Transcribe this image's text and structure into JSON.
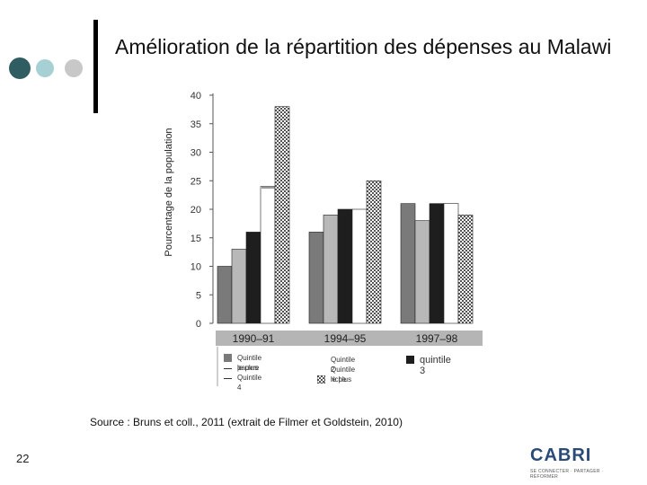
{
  "title": "Amélioration de la répartition des dépenses au Malawi",
  "source": "Source : Bruns et coll., 2011 (extrait de Filmer et Goldstein, 2010)",
  "page_number": "22",
  "logo": {
    "word": "CABRI",
    "tagline": "SE CONNECTER · PARTAGER · RÉFORMER"
  },
  "colors": {
    "dot1": "#2f5d62",
    "dot2": "#a6d0d3",
    "dot3": "#c8c8c8"
  },
  "chart_data": {
    "type": "bar",
    "ylabel": "Pourcentage de la population",
    "xlabel": "",
    "ylim": [
      0,
      40
    ],
    "yticks": [
      0,
      5,
      10,
      15,
      20,
      25,
      30,
      35,
      40
    ],
    "categories": [
      "1990–91",
      "1994–95",
      "1997–98"
    ],
    "series": [
      {
        "name": "Quintile le plus pauvre",
        "values": [
          10,
          16,
          21
        ],
        "fill": "#7a7a7a"
      },
      {
        "name": "Quintile 2",
        "values": [
          13,
          19,
          18
        ],
        "fill": "#b8b8b8"
      },
      {
        "name": "quintile 3",
        "values": [
          16,
          20,
          21
        ],
        "fill": "#1e1e1e"
      },
      {
        "name": "Quintile 4",
        "values": [
          24,
          20,
          21
        ],
        "fill": "#ffffff"
      },
      {
        "name": "Quintile le plus riche",
        "values": [
          38,
          25,
          19
        ],
        "fill": "pattern"
      }
    ]
  },
  "legend": [
    {
      "label": "Quintile le plus",
      "marker": "swatch",
      "fill": "#7a7a7a"
    },
    {
      "label": "pauvre",
      "marker": "dash"
    },
    {
      "label": "Quintile 4",
      "marker": "dash"
    },
    {
      "label": "Quintile 2",
      "marker": "none"
    },
    {
      "label": "Quintile le plus",
      "marker": "none"
    },
    {
      "label": "riche",
      "marker": "pattern"
    },
    {
      "label": "quintile 3",
      "marker": "swatch",
      "fill": "#1e1e1e"
    }
  ]
}
